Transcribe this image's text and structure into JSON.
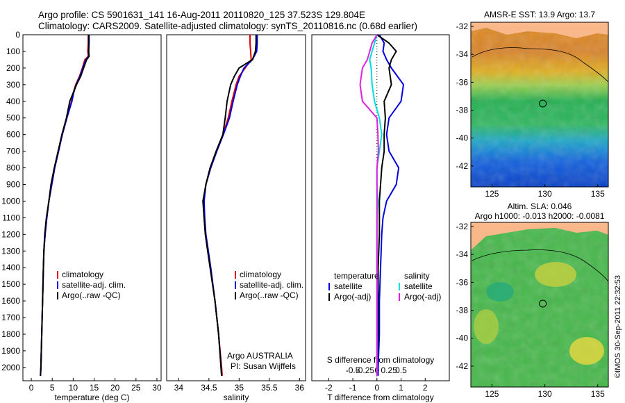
{
  "header": {
    "line1": "Argo profile: CS 5901631_141 16-Aug-2011 20110820_125 37.523S 129.804E",
    "line2": "Climatology: CARS2009. Satellite-adjusted climatology: synTS_20110816.nc (0.68d earlier)"
  },
  "watermark": "©IMOS 30-Sep-2011 22:32:53",
  "colors": {
    "climatology": "#e00000",
    "satellite": "#0000e0",
    "argo": "#000000",
    "sal_satellite": "#00dddd",
    "sal_argo": "#e020e0"
  },
  "chart_data": [
    {
      "type": "line",
      "name": "temperature",
      "xlabel": "temperature (deg C)",
      "ylabel": "",
      "xlim": [
        -2,
        31
      ],
      "ylim": [
        2080,
        0
      ],
      "xticks": [
        "0",
        "5",
        "10",
        "15",
        "20",
        "25",
        "30"
      ],
      "yticks": [
        "0",
        "100",
        "200",
        "300",
        "400",
        "500",
        "600",
        "700",
        "800",
        "900",
        "1000",
        "1100",
        "1200",
        "1300",
        "1400",
        "1500",
        "1600",
        "1700",
        "1800",
        "1900",
        "2000"
      ],
      "legend": [
        "climatology",
        "satellite-adj. clim.",
        "Argo(..raw -QC)"
      ],
      "depth": [
        0,
        50,
        100,
        130,
        150,
        200,
        250,
        300,
        350,
        400,
        500,
        600,
        700,
        800,
        900,
        1000,
        1100,
        1200,
        1300,
        1400,
        1600,
        1800,
        2000,
        2050
      ],
      "series": [
        {
          "name": "climatology",
          "values": [
            13.6,
            13.6,
            13.5,
            13.6,
            12.8,
            12.2,
            11.5,
            10.6,
            10.0,
            9.6,
            8.5,
            7.4,
            6.5,
            5.6,
            4.9,
            4.2,
            3.7,
            3.3,
            3.0,
            2.9,
            2.7,
            2.5,
            2.3,
            2.2
          ]
        },
        {
          "name": "satellite-adj. clim.",
          "values": [
            13.8,
            13.8,
            13.7,
            13.7,
            13.0,
            12.3,
            11.6,
            10.7,
            10.1,
            9.7,
            8.5,
            7.4,
            6.5,
            5.6,
            4.9,
            4.2,
            3.7,
            3.3,
            3.0,
            2.9,
            2.7,
            2.5,
            2.3,
            2.2
          ]
        },
        {
          "name": "Argo(..raw -QC)",
          "values": [
            13.7,
            13.7,
            13.7,
            13.8,
            13.2,
            12.5,
            11.8,
            10.8,
            10.0,
            9.2,
            8.4,
            7.3,
            6.4,
            5.5,
            4.7,
            4.2,
            3.6,
            3.2,
            3.0,
            2.9,
            2.7,
            2.5,
            2.3,
            2.2
          ]
        }
      ]
    },
    {
      "type": "line",
      "name": "salinity",
      "xlabel": "salinity",
      "xlim": [
        33.8,
        36.1
      ],
      "ylim": [
        2080,
        0
      ],
      "xticks": [
        "34",
        "34.5",
        "35",
        "35.5",
        "36"
      ],
      "legend": [
        "climatology",
        "satellite-adj. clim.",
        "Argo(..raw -QC)"
      ],
      "annotation": [
        "Argo AUSTRALIA",
        "PI: Susan Wijffels"
      ],
      "depth": [
        0,
        50,
        100,
        150,
        200,
        250,
        300,
        400,
        500,
        600,
        700,
        800,
        900,
        1000,
        1100,
        1200,
        1300,
        1400,
        1600,
        1800,
        2000,
        2050
      ],
      "series": [
        {
          "name": "climatology",
          "values": [
            35.18,
            35.18,
            35.19,
            35.2,
            35.1,
            35.0,
            34.95,
            34.88,
            34.82,
            34.73,
            34.62,
            34.52,
            34.45,
            34.41,
            34.42,
            34.44,
            34.48,
            34.52,
            34.6,
            34.66,
            34.71,
            34.72
          ]
        },
        {
          "name": "satellite-adj. clim.",
          "values": [
            35.3,
            35.3,
            35.29,
            35.22,
            35.08,
            35.02,
            34.97,
            34.9,
            34.84,
            34.74,
            34.63,
            34.53,
            34.45,
            34.42,
            34.43,
            34.45,
            34.49,
            34.53,
            34.6,
            34.66,
            34.7,
            34.71
          ]
        },
        {
          "name": "Argo(..raw -QC)",
          "values": [
            35.28,
            35.28,
            35.27,
            35.22,
            35.0,
            34.92,
            34.86,
            34.8,
            34.77,
            34.73,
            34.62,
            34.52,
            34.45,
            34.4,
            34.42,
            34.44,
            34.48,
            34.52,
            34.6,
            34.66,
            34.7,
            34.71
          ]
        }
      ]
    },
    {
      "type": "line",
      "name": "differences",
      "xlabel": "T difference from climatology",
      "xlabel_top": "S difference from climatology",
      "xlim": [
        -2.7,
        3.0
      ],
      "ylim": [
        2080,
        0
      ],
      "xticks": [
        "-2",
        "-1",
        "0",
        "1",
        "2"
      ],
      "xticks_top": [
        "-0.5",
        "-0.25",
        "0",
        "0.25",
        "0.5"
      ],
      "legend_headers": [
        "temperature",
        "salinity"
      ],
      "legend": [
        "satellite",
        "Argo(-adj)",
        "satellite",
        "Argo(-adj)"
      ],
      "depth": [
        0,
        50,
        100,
        150,
        200,
        300,
        400,
        500,
        600,
        700,
        800,
        900,
        1000,
        1100,
        1200,
        1400,
        1600,
        1800,
        2000,
        2050
      ],
      "series": [
        {
          "name": "T satellite",
          "values": [
            0.1,
            0.3,
            0.25,
            0.4,
            0.6,
            1.1,
            1.0,
            0.5,
            0.4,
            0.5,
            0.9,
            0.8,
            0.4,
            0.25,
            0.2,
            0.15,
            0.1,
            0.1,
            0.05,
            0.05
          ]
        },
        {
          "name": "T Argo(-adj)",
          "values": [
            0.0,
            0.5,
            0.8,
            0.6,
            0.5,
            0.6,
            0.3,
            0.35,
            0.3,
            0.3,
            0.2,
            0.15,
            0.1,
            0.1,
            0.1,
            0.05,
            0.05,
            0.05,
            0.0,
            0.0
          ]
        },
        {
          "name": "S satellite",
          "values": [
            0.0,
            -0.05,
            -0.1,
            -0.15,
            -0.12,
            -0.1,
            -0.05,
            0.05,
            0.1,
            0.05,
            0.0,
            0.0,
            0.02,
            0.0,
            0.0,
            0.0,
            0.0,
            0.0,
            0.0,
            0.0
          ]
        },
        {
          "name": "S Argo(-adj)",
          "values": [
            0.0,
            -0.1,
            -0.15,
            -0.2,
            -0.3,
            -0.35,
            -0.3,
            0.0,
            0.02,
            0.03,
            0.0,
            0.0,
            0.0,
            0.0,
            0.0,
            0.0,
            0.0,
            0.0,
            0.0,
            0.0
          ]
        }
      ]
    },
    {
      "type": "heatmap",
      "name": "sst-map",
      "title": "AMSR-E SST: 13.9 Argo: 13.7",
      "xlim": [
        123,
        136
      ],
      "ylim": [
        -43.5,
        -31.7
      ],
      "xticks": [
        "125",
        "130",
        "135"
      ],
      "yticks": [
        "-32",
        "-34",
        "-36",
        "-38",
        "-40",
        "-42"
      ],
      "marker": {
        "lon": 129.804,
        "lat": -37.523
      }
    },
    {
      "type": "heatmap",
      "name": "sla-map",
      "title_line1": "Altim. SLA: 0.046",
      "title_line2": "Argo h1000: -0.013 h2000: -0.0081",
      "xlim": [
        123,
        136
      ],
      "ylim": [
        -43.5,
        -31.7
      ],
      "xticks": [
        "125",
        "130",
        "135"
      ],
      "yticks": [
        "-32",
        "-34",
        "-36",
        "-38",
        "-40",
        "-42"
      ],
      "marker": {
        "lon": 129.804,
        "lat": -37.523
      }
    }
  ]
}
